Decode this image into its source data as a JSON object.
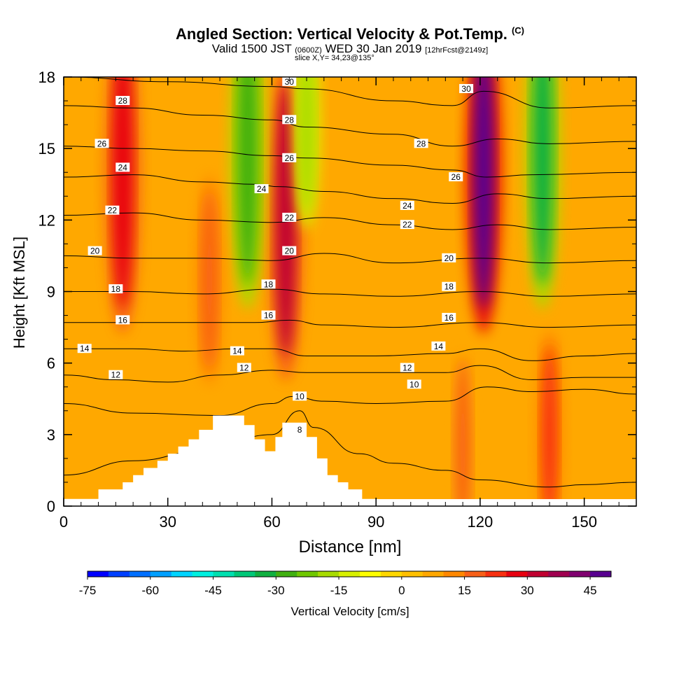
{
  "header": {
    "title": "Angled Section: Vertical Velocity & Pot.Temp.",
    "title_unit": "(C)",
    "subtitle_a": "Valid 1500 JST",
    "subtitle_b": "(0600Z)",
    "subtitle_c": "WED 30 Jan 2019",
    "subtitle_d": "[12hrFcst@2149z]",
    "slice": "slice X,Y= 34,23@135°"
  },
  "chart_data": {
    "type": "heatmap",
    "xlabel": "Distance [nm]",
    "ylabel": "Height [Kft MSL]",
    "xlim": [
      0,
      165
    ],
    "ylim": [
      0,
      18
    ],
    "xticks": [
      0,
      30,
      60,
      90,
      120,
      150
    ],
    "yticks": [
      0,
      3,
      6,
      9,
      12,
      15,
      18
    ],
    "colorbar": {
      "label": "Vertical Velocity [cm/s]",
      "range": [
        -75,
        50
      ],
      "step": 5,
      "ticks": [
        -75,
        -60,
        -45,
        -30,
        -15,
        0,
        15,
        30,
        45
      ],
      "colors": [
        "#0000ff",
        "#0040ff",
        "#0070ff",
        "#00a0ff",
        "#00d4ff",
        "#00f0e0",
        "#00e0b0",
        "#00c878",
        "#10b040",
        "#40b010",
        "#70c800",
        "#a8dc00",
        "#d8f000",
        "#ffff00",
        "#ffd800",
        "#ffc000",
        "#ffa800",
        "#ff8800",
        "#f86018",
        "#f83010",
        "#e80010",
        "#c00030",
        "#a00050",
        "#800070",
        "#580090"
      ]
    },
    "terrain_kft": [
      [
        0,
        0.3
      ],
      [
        10,
        0.3
      ],
      [
        10,
        0.7
      ],
      [
        17,
        0.7
      ],
      [
        17,
        1.0
      ],
      [
        20,
        1.0
      ],
      [
        20,
        1.3
      ],
      [
        23,
        1.3
      ],
      [
        23,
        1.6
      ],
      [
        27,
        1.6
      ],
      [
        27,
        1.9
      ],
      [
        30,
        1.9
      ],
      [
        30,
        2.2
      ],
      [
        33,
        2.2
      ],
      [
        33,
        2.5
      ],
      [
        36,
        2.5
      ],
      [
        36,
        2.8
      ],
      [
        39,
        2.8
      ],
      [
        39,
        3.2
      ],
      [
        43,
        3.2
      ],
      [
        43,
        3.8
      ],
      [
        52,
        3.8
      ],
      [
        52,
        3.4
      ],
      [
        55,
        3.4
      ],
      [
        55,
        2.8
      ],
      [
        58,
        2.8
      ],
      [
        58,
        2.3
      ],
      [
        61,
        2.3
      ],
      [
        61,
        2.9
      ],
      [
        63,
        2.9
      ],
      [
        63,
        3.5
      ],
      [
        70,
        3.5
      ],
      [
        70,
        2.9
      ],
      [
        73,
        2.9
      ],
      [
        73,
        2.0
      ],
      [
        76,
        2.0
      ],
      [
        76,
        1.3
      ],
      [
        79,
        1.3
      ],
      [
        79,
        1.0
      ],
      [
        82,
        1.0
      ],
      [
        82,
        0.7
      ],
      [
        86,
        0.7
      ],
      [
        86,
        0.3
      ],
      [
        90,
        0.3
      ],
      [
        90,
        0
      ]
    ],
    "velocity_features": [
      {
        "x": 17,
        "y_center": 14,
        "value": 28
      },
      {
        "x": 64,
        "y_center": 12,
        "value": 30
      },
      {
        "x": 121,
        "y_center": 14,
        "value": 45
      },
      {
        "x": 140,
        "y_center": 3,
        "value": 24
      },
      {
        "x": 53,
        "y_center": 15,
        "value": -30
      },
      {
        "x": 70,
        "y_center": 16,
        "value": -20
      },
      {
        "x": 138,
        "y_center": 15,
        "value": -32
      },
      {
        "x": 42,
        "y_center": 9.5,
        "value": 18
      },
      {
        "x": 115,
        "y_center": 2.5,
        "value": 16
      }
    ],
    "theta_contours": [
      {
        "value": 8,
        "points": [
          [
            0,
            1.3
          ],
          [
            20,
            1.9
          ],
          [
            40,
            2.3
          ],
          [
            60,
            3.0
          ],
          [
            68,
            4.0
          ],
          [
            72,
            3.3
          ],
          [
            85,
            2.2
          ],
          [
            95,
            1.8
          ],
          [
            110,
            1.5
          ],
          [
            120,
            1.1
          ],
          [
            140,
            0.8
          ],
          [
            150,
            0.9
          ],
          [
            165,
            1.0
          ]
        ]
      },
      {
        "value": 10,
        "points": [
          [
            0,
            4.3
          ],
          [
            20,
            3.9
          ],
          [
            45,
            3.8
          ],
          [
            60,
            4.3
          ],
          [
            66,
            4.6
          ],
          [
            75,
            4.4
          ],
          [
            90,
            4.3
          ],
          [
            110,
            4.4
          ],
          [
            122,
            5.0
          ],
          [
            135,
            4.8
          ],
          [
            150,
            4.9
          ],
          [
            165,
            4.7
          ]
        ]
      },
      {
        "value": 12,
        "points": [
          [
            0,
            5.5
          ],
          [
            15,
            5.3
          ],
          [
            30,
            5.2
          ],
          [
            45,
            5.5
          ],
          [
            60,
            5.7
          ],
          [
            70,
            5.6
          ],
          [
            90,
            5.6
          ],
          [
            110,
            5.6
          ],
          [
            120,
            5.9
          ],
          [
            135,
            5.3
          ],
          [
            150,
            5.4
          ],
          [
            165,
            5.4
          ]
        ]
      },
      {
        "value": 14,
        "points": [
          [
            0,
            6.6
          ],
          [
            20,
            6.6
          ],
          [
            35,
            6.5
          ],
          [
            50,
            6.6
          ],
          [
            60,
            6.6
          ],
          [
            70,
            6.3
          ],
          [
            90,
            6.3
          ],
          [
            110,
            6.4
          ],
          [
            120,
            6.6
          ],
          [
            135,
            6.1
          ],
          [
            150,
            6.3
          ],
          [
            165,
            6.4
          ]
        ]
      },
      {
        "value": 16,
        "points": [
          [
            0,
            7.7
          ],
          [
            20,
            7.7
          ],
          [
            40,
            7.7
          ],
          [
            55,
            7.7
          ],
          [
            65,
            7.8
          ],
          [
            75,
            7.6
          ],
          [
            95,
            7.5
          ],
          [
            120,
            7.7
          ],
          [
            140,
            7.5
          ],
          [
            165,
            7.6
          ]
        ]
      },
      {
        "value": 18,
        "points": [
          [
            0,
            9.0
          ],
          [
            20,
            9.0
          ],
          [
            40,
            8.9
          ],
          [
            60,
            9.1
          ],
          [
            75,
            8.9
          ],
          [
            95,
            8.8
          ],
          [
            120,
            9.0
          ],
          [
            140,
            8.8
          ],
          [
            165,
            8.9
          ]
        ]
      },
      {
        "value": 20,
        "points": [
          [
            0,
            10.5
          ],
          [
            20,
            10.4
          ],
          [
            40,
            10.4
          ],
          [
            60,
            10.3
          ],
          [
            75,
            10.6
          ],
          [
            95,
            10.2
          ],
          [
            120,
            10.4
          ],
          [
            140,
            10.2
          ],
          [
            165,
            10.3
          ]
        ]
      },
      {
        "value": 22,
        "points": [
          [
            0,
            12.2
          ],
          [
            20,
            12.3
          ],
          [
            40,
            12.0
          ],
          [
            60,
            11.9
          ],
          [
            75,
            12.1
          ],
          [
            95,
            11.8
          ],
          [
            112,
            11.6
          ],
          [
            125,
            11.8
          ],
          [
            140,
            11.6
          ],
          [
            165,
            11.7
          ]
        ]
      },
      {
        "value": 24,
        "points": [
          [
            0,
            13.8
          ],
          [
            20,
            13.9
          ],
          [
            40,
            13.6
          ],
          [
            55,
            13.5
          ],
          [
            62,
            13.4
          ],
          [
            75,
            13.2
          ],
          [
            95,
            12.9
          ],
          [
            112,
            12.7
          ],
          [
            125,
            13.1
          ],
          [
            140,
            12.9
          ],
          [
            165,
            13.0
          ]
        ]
      },
      {
        "value": 26,
        "points": [
          [
            0,
            15.1
          ],
          [
            20,
            15.0
          ],
          [
            40,
            14.9
          ],
          [
            60,
            14.7
          ],
          [
            70,
            14.6
          ],
          [
            95,
            14.3
          ],
          [
            112,
            14.1
          ],
          [
            122,
            13.8
          ],
          [
            135,
            13.9
          ],
          [
            165,
            14.0
          ]
        ]
      },
      {
        "value": 28,
        "points": [
          [
            0,
            16.8
          ],
          [
            20,
            16.7
          ],
          [
            40,
            16.4
          ],
          [
            60,
            16.2
          ],
          [
            70,
            15.9
          ],
          [
            95,
            15.6
          ],
          [
            112,
            15.1
          ],
          [
            125,
            15.4
          ],
          [
            140,
            15.2
          ],
          [
            165,
            15.3
          ]
        ]
      },
      {
        "value": 30,
        "points": [
          [
            0,
            18.0
          ],
          [
            30,
            17.8
          ],
          [
            60,
            17.6
          ],
          [
            70,
            17.5
          ],
          [
            95,
            17.0
          ],
          [
            112,
            16.8
          ],
          [
            121,
            17.4
          ],
          [
            140,
            16.7
          ],
          [
            165,
            16.8
          ]
        ]
      }
    ],
    "contour_labels": [
      {
        "text": "28",
        "x": 17,
        "y": 17.0
      },
      {
        "text": "26",
        "x": 11,
        "y": 15.2
      },
      {
        "text": "24",
        "x": 17,
        "y": 14.2
      },
      {
        "text": "22",
        "x": 14,
        "y": 12.4
      },
      {
        "text": "20",
        "x": 9,
        "y": 10.7
      },
      {
        "text": "18",
        "x": 15,
        "y": 9.1
      },
      {
        "text": "16",
        "x": 17,
        "y": 7.8
      },
      {
        "text": "14",
        "x": 6,
        "y": 6.6
      },
      {
        "text": "12",
        "x": 15,
        "y": 5.5
      },
      {
        "text": "30",
        "x": 65,
        "y": 17.8
      },
      {
        "text": "28",
        "x": 65,
        "y": 16.2
      },
      {
        "text": "26",
        "x": 65,
        "y": 14.6
      },
      {
        "text": "24",
        "x": 57,
        "y": 13.3
      },
      {
        "text": "22",
        "x": 65,
        "y": 12.1
      },
      {
        "text": "20",
        "x": 65,
        "y": 10.7
      },
      {
        "text": "18",
        "x": 59,
        "y": 9.3
      },
      {
        "text": "16",
        "x": 59,
        "y": 8.0
      },
      {
        "text": "14",
        "x": 50,
        "y": 6.5
      },
      {
        "text": "12",
        "x": 52,
        "y": 5.8
      },
      {
        "text": "10",
        "x": 68,
        "y": 4.6
      },
      {
        "text": "8",
        "x": 68,
        "y": 3.2
      },
      {
        "text": "30",
        "x": 116,
        "y": 17.5
      },
      {
        "text": "28",
        "x": 103,
        "y": 15.2
      },
      {
        "text": "26",
        "x": 113,
        "y": 13.8
      },
      {
        "text": "24",
        "x": 99,
        "y": 12.6
      },
      {
        "text": "22",
        "x": 99,
        "y": 11.8
      },
      {
        "text": "20",
        "x": 111,
        "y": 10.4
      },
      {
        "text": "18",
        "x": 111,
        "y": 9.2
      },
      {
        "text": "16",
        "x": 111,
        "y": 7.9
      },
      {
        "text": "14",
        "x": 108,
        "y": 6.7
      },
      {
        "text": "12",
        "x": 99,
        "y": 5.8
      },
      {
        "text": "10",
        "x": 101,
        "y": 5.1
      }
    ]
  }
}
